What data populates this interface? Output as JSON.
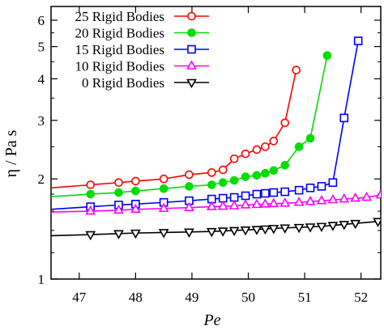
{
  "chart_data": {
    "type": "line",
    "xlabel": "Pe",
    "ylabel": "η / Pa s",
    "xlim": [
      46.5,
      52.35
    ],
    "ylim": [
      1,
      6.6
    ],
    "yscale": "log",
    "x_ticks": [
      47,
      48,
      49,
      50,
      51,
      52
    ],
    "y_ticks": [
      1,
      2,
      3,
      4,
      5,
      6
    ],
    "legend_position": "top-left",
    "grid": false,
    "series": [
      {
        "name": "25 Rigid Bodies",
        "color": "#ff0000",
        "marker": "open-circle",
        "x": [
          46.5,
          47.2,
          47.7,
          48.0,
          48.5,
          48.95,
          49.35,
          49.55,
          49.75,
          49.95,
          50.15,
          50.3,
          50.45,
          50.65,
          50.85
        ],
        "y": [
          1.88,
          1.92,
          1.95,
          1.97,
          2.0,
          2.06,
          2.09,
          2.13,
          2.3,
          2.38,
          2.45,
          2.5,
          2.6,
          2.95,
          4.25
        ]
      },
      {
        "name": "20 Rigid Bodies",
        "color": "#00dd00",
        "marker": "filled-circle",
        "x": [
          46.5,
          47.2,
          47.7,
          48.0,
          48.5,
          48.95,
          49.35,
          49.55,
          49.75,
          49.95,
          50.15,
          50.3,
          50.45,
          50.65,
          50.9,
          51.1,
          51.4
        ],
        "y": [
          1.77,
          1.8,
          1.82,
          1.84,
          1.87,
          1.9,
          1.92,
          1.95,
          1.98,
          2.03,
          2.05,
          2.08,
          2.12,
          2.2,
          2.5,
          2.65,
          4.7
        ]
      },
      {
        "name": "15 Rigid Bodies",
        "color": "#0000ff",
        "marker": "open-square",
        "x": [
          46.5,
          47.2,
          47.7,
          48.0,
          48.5,
          48.95,
          49.35,
          49.55,
          49.75,
          49.95,
          50.15,
          50.3,
          50.45,
          50.65,
          50.9,
          51.1,
          51.3,
          51.5,
          51.7,
          51.95
        ],
        "y": [
          1.62,
          1.65,
          1.67,
          1.68,
          1.7,
          1.72,
          1.74,
          1.75,
          1.76,
          1.78,
          1.8,
          1.81,
          1.82,
          1.83,
          1.85,
          1.88,
          1.9,
          1.95,
          3.05,
          5.2
        ]
      },
      {
        "name": "10 Rigid Bodies",
        "color": "#ff00ff",
        "marker": "open-triangle",
        "x": [
          46.5,
          47.2,
          47.7,
          48.0,
          48.5,
          48.95,
          49.35,
          49.55,
          49.75,
          49.95,
          50.15,
          50.3,
          50.45,
          50.65,
          50.9,
          51.1,
          51.3,
          51.5,
          51.7,
          51.9,
          52.1,
          52.35
        ],
        "y": [
          1.59,
          1.6,
          1.61,
          1.62,
          1.63,
          1.64,
          1.65,
          1.655,
          1.66,
          1.67,
          1.675,
          1.68,
          1.685,
          1.69,
          1.7,
          1.71,
          1.72,
          1.73,
          1.74,
          1.75,
          1.76,
          1.79
        ]
      },
      {
        "name": "0 Rigid Bodies",
        "color": "#000000",
        "marker": "open-inverted-triangle",
        "x": [
          46.5,
          47.2,
          47.7,
          48.0,
          48.5,
          48.95,
          49.35,
          49.55,
          49.75,
          49.95,
          50.15,
          50.3,
          50.45,
          50.65,
          50.9,
          51.1,
          51.3,
          51.5,
          51.7,
          51.9,
          52.3
        ],
        "y": [
          1.35,
          1.36,
          1.37,
          1.375,
          1.38,
          1.385,
          1.39,
          1.395,
          1.4,
          1.405,
          1.41,
          1.415,
          1.42,
          1.425,
          1.43,
          1.435,
          1.44,
          1.45,
          1.46,
          1.47,
          1.49
        ]
      }
    ]
  }
}
